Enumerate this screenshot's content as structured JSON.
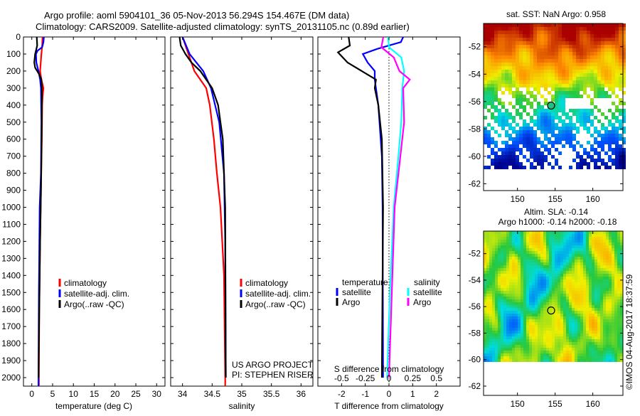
{
  "title": {
    "line1": "Argo profile: aoml 5904101_36 05-Nov-2013 56.294S 154.467E (DM data)",
    "line2": "Climatology: CARS2009. Satellite-adjusted climatology: synTS_20131105.nc (0.89d earlier)"
  },
  "depth_ticks": [
    0,
    100,
    200,
    300,
    400,
    500,
    600,
    700,
    800,
    900,
    1000,
    1100,
    1200,
    1300,
    1400,
    1500,
    1600,
    1700,
    1800,
    1900,
    2000
  ],
  "colors": {
    "climatology": "#ff0000",
    "satellite": "#0000ff",
    "argo": "#000000",
    "s_satellite": "#00ffff",
    "s_argo": "#ff00ff"
  },
  "chart_data": [
    {
      "type": "line",
      "xlabel": "temperature (deg C)",
      "xlim": [
        -2,
        32
      ],
      "ylim": [
        2050,
        0
      ],
      "xticks": [
        0,
        5,
        10,
        15,
        20,
        25,
        30
      ],
      "legend": [
        "climatology",
        "satellite-adj. clim.",
        "Argo(..raw -QC)"
      ],
      "series": [
        {
          "name": "climatology",
          "color": "#ff0000",
          "depth": [
            0,
            50,
            100,
            200,
            250,
            300,
            350,
            400,
            600,
            900,
            1200,
            1600,
            2000,
            2050
          ],
          "values": [
            2.6,
            2.5,
            2.3,
            2.0,
            2.3,
            2.8,
            2.6,
            2.5,
            2.4,
            2.2,
            2.0,
            1.8,
            1.7,
            1.7
          ]
        },
        {
          "name": "satellite-adj. clim.",
          "color": "#0000ff",
          "depth": [
            0,
            30,
            60,
            80,
            100,
            150,
            200,
            250,
            300,
            500,
            800,
            1000,
            1500,
            2000,
            2050
          ],
          "values": [
            2.9,
            2.8,
            2.5,
            1.4,
            1.0,
            1.1,
            1.6,
            2.0,
            2.2,
            2.3,
            2.2,
            1.9,
            1.7,
            1.6,
            1.6
          ]
        },
        {
          "name": "Argo(..raw -QC)",
          "color": "#000000",
          "depth": [
            0,
            50,
            80,
            100,
            150,
            180,
            220,
            250,
            300,
            500,
            900,
            1200,
            1600,
            2000
          ],
          "values": [
            1.2,
            1.3,
            1.0,
            0.8,
            0.6,
            0.8,
            1.8,
            2.3,
            2.4,
            2.4,
            2.2,
            2.0,
            1.8,
            1.6
          ]
        }
      ]
    },
    {
      "type": "line",
      "xlabel": "salinity",
      "xlim": [
        33.8,
        36.2
      ],
      "ylim": [
        2050,
        0
      ],
      "xticks": [
        34,
        34.5,
        35,
        35.5,
        36
      ],
      "xticklabels": [
        "34",
        "34.5",
        "35",
        "35.5",
        "36"
      ],
      "legend": [
        "climatology",
        "satellite-adj. clim.",
        "Argo(..raw -QC)"
      ],
      "annotation": [
        "US ARGO PROJECT",
        "PI: STEPHEN RISER"
      ],
      "series": [
        {
          "name": "climatology",
          "color": "#ff0000",
          "depth": [
            0,
            100,
            200,
            300,
            400,
            600,
            800,
            1000,
            1400,
            2000,
            2050
          ],
          "values": [
            34.0,
            34.1,
            34.2,
            34.4,
            34.46,
            34.53,
            34.58,
            34.64,
            34.7,
            34.72,
            34.72
          ]
        },
        {
          "name": "satellite-adj. clim.",
          "color": "#0000ff",
          "depth": [
            0,
            100,
            200,
            300,
            500,
            800,
            1200,
            2000
          ],
          "values": [
            34.0,
            34.12,
            34.35,
            34.48,
            34.62,
            34.7,
            34.72,
            34.73
          ]
        },
        {
          "name": "Argo(..raw -QC)",
          "color": "#000000",
          "depth": [
            0,
            50,
            100,
            150,
            200,
            250,
            300,
            400,
            600,
            1000,
            2000
          ],
          "values": [
            33.95,
            33.97,
            34.05,
            34.15,
            34.3,
            34.4,
            34.5,
            34.6,
            34.68,
            34.72,
            34.73
          ]
        }
      ]
    },
    {
      "type": "line",
      "xlabel": "T difference from climatology",
      "x2label": "S difference from climatology",
      "xlim": [
        -3,
        3
      ],
      "s_xlim": [
        -0.75,
        0.75
      ],
      "ylim": [
        2050,
        0
      ],
      "xticks": [
        -2,
        -1,
        0,
        1,
        2
      ],
      "s_xticks": [
        -0.5,
        -0.25,
        0,
        0.25,
        0.5
      ],
      "s_xticklabels": [
        "-0.5",
        "-0.25",
        "0",
        "0.25",
        "0.5"
      ],
      "legend_t": {
        "heading": "temperature",
        "items": [
          "satellite",
          "Argo"
        ]
      },
      "legend_s": {
        "heading": "salinity",
        "items": [
          "satellite",
          "Argo"
        ]
      },
      "series": [
        {
          "name": "T satellite",
          "axis": "T",
          "color": "#0000ff",
          "depth": [
            0,
            30,
            70,
            100,
            150,
            200,
            250,
            400,
            700,
            1000,
            2000
          ],
          "values": [
            0.6,
            0.5,
            -0.5,
            -1.1,
            -0.9,
            -0.6,
            -0.6,
            -0.45,
            -0.3,
            -0.27,
            -0.25
          ]
        },
        {
          "name": "T Argo",
          "axis": "T",
          "color": "#000000",
          "depth": [
            0,
            50,
            90,
            150,
            200,
            250,
            300,
            400,
            600,
            1000,
            2000
          ],
          "values": [
            -1.7,
            -1.65,
            -2.15,
            -1.75,
            -1.15,
            -0.55,
            -0.6,
            -0.45,
            -0.3,
            -0.25,
            -0.3
          ]
        },
        {
          "name": "S satellite",
          "axis": "S",
          "color": "#00ffff",
          "depth": [
            0,
            60,
            120,
            200,
            300,
            500,
            700,
            1000,
            1500,
            2000
          ],
          "values": [
            -0.01,
            0.0,
            0.13,
            0.16,
            0.14,
            0.13,
            0.1,
            0.05,
            0.01,
            -0.02
          ]
        },
        {
          "name": "S Argo",
          "axis": "S",
          "color": "#ff00ff",
          "depth": [
            0,
            60,
            120,
            200,
            250,
            300,
            500,
            700,
            1000,
            1500,
            2000
          ],
          "values": [
            -0.06,
            -0.08,
            0.05,
            0.11,
            0.22,
            0.15,
            0.16,
            0.12,
            0.06,
            0.03,
            0.0
          ]
        }
      ]
    },
    {
      "type": "heatmap",
      "title": "sat. SST: NaN Argo: 0.958",
      "xlim": [
        145.5,
        164
      ],
      "ylim": [
        -62.5,
        -50.3
      ],
      "xticks": [
        150,
        155,
        160
      ],
      "yticks": [
        -52,
        -54,
        -56,
        -58,
        -60,
        -62
      ],
      "marker": {
        "lon": 154.467,
        "lat": -56.294
      }
    },
    {
      "type": "heatmap",
      "title": "Altim. SLA: -0.14",
      "subtitle": "Argo h1000: -0.14 h2000: -0.18",
      "xlim": [
        145.5,
        164
      ],
      "ylim": [
        -62.7,
        -50.3
      ],
      "xticks": [
        150,
        155,
        160
      ],
      "yticks": [
        -52,
        -54,
        -56,
        -58,
        -60,
        -62
      ],
      "marker": {
        "lon": 154.467,
        "lat": -56.294
      }
    }
  ],
  "credit": "©IMOS 04-Aug-2017 18:37:59"
}
